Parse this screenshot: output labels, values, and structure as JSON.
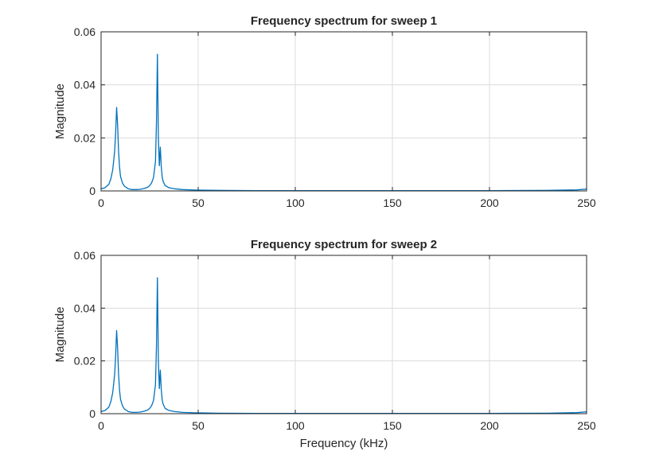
{
  "chart_data": [
    {
      "type": "line",
      "title": "Frequency spectrum for sweep 1",
      "xlabel": "",
      "ylabel": "Magnitude",
      "xlim": [
        0,
        250
      ],
      "ylim": [
        0,
        0.06
      ],
      "xticks": [
        0,
        50,
        100,
        150,
        200,
        250
      ],
      "xtick_labels": [
        "0",
        "50",
        "100",
        "150",
        "200",
        "250"
      ],
      "yticks": [
        0,
        0.02,
        0.04,
        0.06
      ],
      "ytick_labels": [
        "0",
        "0.02",
        "0.04",
        "0.06"
      ],
      "grid": true,
      "line_color": "#0072BD",
      "series": [
        {
          "x": [
            0,
            2,
            4,
            5,
            6,
            7,
            7.5,
            8,
            8.5,
            9,
            9.5,
            10,
            11,
            12,
            14,
            16,
            18,
            20,
            22,
            24,
            25,
            26,
            27,
            28,
            28.5,
            29,
            29.5,
            30,
            30.5,
            31,
            31.5,
            32,
            33,
            35,
            38,
            42,
            50,
            60,
            80,
            100,
            150,
            200,
            230,
            245,
            250
          ],
          "y": [
            0.0008,
            0.0012,
            0.0025,
            0.0045,
            0.008,
            0.015,
            0.022,
            0.0315,
            0.025,
            0.015,
            0.009,
            0.0055,
            0.003,
            0.0018,
            0.0008,
            0.0005,
            0.0005,
            0.0006,
            0.0009,
            0.0014,
            0.002,
            0.003,
            0.005,
            0.011,
            0.025,
            0.0515,
            0.02,
            0.0095,
            0.0165,
            0.009,
            0.005,
            0.0035,
            0.002,
            0.0012,
            0.0008,
            0.0005,
            0.0003,
            0.0002,
            0.0001,
            0.0001,
            0.0001,
            0.0001,
            0.0002,
            0.0004,
            0.0007
          ]
        }
      ]
    },
    {
      "type": "line",
      "title": "Frequency spectrum for sweep 2",
      "xlabel": "Frequency (kHz)",
      "ylabel": "Magnitude",
      "xlim": [
        0,
        250
      ],
      "ylim": [
        0,
        0.06
      ],
      "xticks": [
        0,
        50,
        100,
        150,
        200,
        250
      ],
      "xtick_labels": [
        "0",
        "50",
        "100",
        "150",
        "200",
        "250"
      ],
      "yticks": [
        0,
        0.02,
        0.04,
        0.06
      ],
      "ytick_labels": [
        "0",
        "0.02",
        "0.04",
        "0.06"
      ],
      "grid": true,
      "line_color": "#0072BD",
      "series": [
        {
          "x": [
            0,
            2,
            4,
            5,
            6,
            7,
            7.5,
            8,
            8.5,
            9,
            9.5,
            10,
            11,
            12,
            14,
            16,
            18,
            20,
            22,
            24,
            25,
            26,
            27,
            28,
            28.5,
            29,
            29.5,
            30,
            30.5,
            31,
            31.5,
            32,
            33,
            35,
            38,
            42,
            50,
            60,
            80,
            100,
            150,
            200,
            230,
            245,
            250
          ],
          "y": [
            0.0008,
            0.0012,
            0.0025,
            0.0045,
            0.008,
            0.015,
            0.022,
            0.0315,
            0.025,
            0.015,
            0.009,
            0.0055,
            0.003,
            0.0018,
            0.0008,
            0.0005,
            0.0005,
            0.0006,
            0.0009,
            0.0014,
            0.002,
            0.003,
            0.005,
            0.011,
            0.025,
            0.0515,
            0.02,
            0.0095,
            0.0165,
            0.009,
            0.005,
            0.0035,
            0.002,
            0.0012,
            0.0008,
            0.0005,
            0.0003,
            0.0002,
            0.0001,
            0.0001,
            0.0001,
            0.0001,
            0.0002,
            0.0004,
            0.0007
          ]
        }
      ]
    }
  ]
}
